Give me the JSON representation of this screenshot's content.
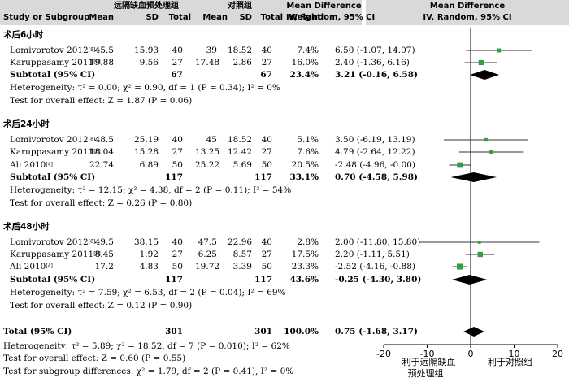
{
  "header": {
    "study": "Study or Subgroup",
    "group1": "远隔缺血预处理组",
    "group2": "对照组",
    "mean": "Mean",
    "sd": "SD",
    "total": "Total",
    "weight": "Weight",
    "md": "Mean Difference",
    "method": "IV, Random, 95% CI"
  },
  "subgroups": [
    {
      "title": "术后6小时",
      "studies": [
        {
          "name": "Lomivorotov 2012",
          "ref": "[8]",
          "m1": "45.5",
          "sd1": "15.93",
          "n1": "40",
          "m2": "39",
          "sd2": "18.52",
          "n2": "40",
          "weight": "7.4%",
          "ci": "6.50 (-1.07, 14.07)"
        },
        {
          "name": "Karuppasamy 2011",
          "ref": "[6]",
          "m1": "19.88",
          "sd1": "9.56",
          "n1": "27",
          "m2": "17.48",
          "sd2": "2.86",
          "n2": "27",
          "weight": "16.0%",
          "ci": "2.40 (-1.36, 6.16)"
        }
      ],
      "subtotal": {
        "label": "Subtotal (95% CI)",
        "n1": "67",
        "n2": "67",
        "weight": "23.4%",
        "ci": "3.21 (-0.16, 6.58)"
      },
      "heterogeneity": "Heterogeneity: τ² = 0.00; χ² = 0.90, df = 1 (P = 0.34); I² = 0%",
      "overall": "Test for overall effect: Z = 1.87 (P = 0.06)"
    },
    {
      "title": "术后24小时",
      "studies": [
        {
          "name": "Lomivorotov 2012",
          "ref": "[8]",
          "m1": "48.5",
          "sd1": "25.19",
          "n1": "40",
          "m2": "45",
          "sd2": "18.52",
          "n2": "40",
          "weight": "5.1%",
          "ci": "3.50 (-6.19, 13.19)"
        },
        {
          "name": "Karuppasamy 2011",
          "ref": "[6]",
          "m1": "18.04",
          "sd1": "15.28",
          "n1": "27",
          "m2": "13.25",
          "sd2": "12.42",
          "n2": "27",
          "weight": "7.6%",
          "ci": "4.79 (-2.64, 12.22)"
        },
        {
          "name": "Ali 2010",
          "ref": "[4]",
          "m1": "22.74",
          "sd1": "6.89",
          "n1": "50",
          "m2": "25.22",
          "sd2": "5.69",
          "n2": "50",
          "weight": "20.5%",
          "ci": "-2.48 (-4.96, -0.00)"
        }
      ],
      "subtotal": {
        "label": "Subtotal (95% CI)",
        "n1": "117",
        "n2": "117",
        "weight": "33.1%",
        "ci": "0.70 (-4.58, 5.98)"
      },
      "heterogeneity": "Heterogeneity: τ² = 12.15; χ² = 4.38, df = 2 (P = 0.11); I² = 54%",
      "overall": "Test for overall effect: Z = 0.26 (P = 0.80)"
    },
    {
      "title": "术后48小时",
      "studies": [
        {
          "name": "Lomivorotov 2012",
          "ref": "[8]",
          "m1": "49.5",
          "sd1": "38.15",
          "n1": "40",
          "m2": "47.5",
          "sd2": "22.96",
          "n2": "40",
          "weight": "2.8%",
          "ci": "2.00 (-11.80, 15.80)"
        },
        {
          "name": "Karuppasamy 2011",
          "ref": "[6]",
          "m1": "8.45",
          "sd1": "1.92",
          "n1": "27",
          "m2": "6.25",
          "sd2": "8.57",
          "n2": "27",
          "weight": "17.5%",
          "ci": "2.20 (-1.11, 5.51)"
        },
        {
          "name": "Ali 2010",
          "ref": "[4]",
          "m1": "17.2",
          "sd1": "4.83",
          "n1": "50",
          "m2": "19.72",
          "sd2": "3.39",
          "n2": "50",
          "weight": "23.3%",
          "ci": "-2.52 (-4.16, -0.88)"
        }
      ],
      "subtotal": {
        "label": "Subtotal (95% CI)",
        "n1": "117",
        "n2": "117",
        "weight": "43.6%",
        "ci": "-0.25 (-4.30, 3.80)"
      },
      "heterogeneity": "Heterogeneity: τ² = 7.59; χ² = 6.53, df = 2 (P = 0.04); I² = 69%",
      "overall": "Test for overall effect: Z = 0.12 (P = 0.90)"
    }
  ],
  "total": {
    "label": "Total (95% CI)",
    "n1": "301",
    "n2": "301",
    "weight": "100.0%",
    "ci": "0.75 (-1.68, 3.17)",
    "heterogeneity": "Heterogeneity: τ² = 5.89; χ² = 18.52, df = 7 (P = 0.010); I² = 62%",
    "overall": "Test for overall effect: Z = 0.60 (P = 0.55)",
    "subgroup_diff": "Test for subgroup differences: χ² = 1.79, df = 2 (P = 0.41), I² = 0%"
  },
  "axis_labels": {
    "left_line1": "利于远隔缺血",
    "left_line2": "预处理组",
    "right": "利于对照组"
  },
  "colors": {
    "header_bg": "#d9d9d9",
    "marker": "#2ea043",
    "diamond": "#000000"
  },
  "chart_data": {
    "type": "scatter",
    "xlim": [
      -20,
      20
    ],
    "ticks": [
      -20,
      -10,
      0,
      10,
      20
    ],
    "tick_labels": [
      "-20",
      "-10",
      "0",
      "10",
      "20"
    ],
    "studies": [
      {
        "subgroup": "术后6小时",
        "name": "Lomivorotov 2012",
        "md": 6.5,
        "lo": -1.07,
        "hi": 14.07,
        "weight": 7.4
      },
      {
        "subgroup": "术后6小时",
        "name": "Karuppasamy 2011",
        "md": 2.4,
        "lo": -1.36,
        "hi": 6.16,
        "weight": 16.0
      },
      {
        "subgroup": "术后24小时",
        "name": "Lomivorotov 2012",
        "md": 3.5,
        "lo": -6.19,
        "hi": 13.19,
        "weight": 5.1
      },
      {
        "subgroup": "术后24小时",
        "name": "Karuppasamy 2011",
        "md": 4.79,
        "lo": -2.64,
        "hi": 12.22,
        "weight": 7.6
      },
      {
        "subgroup": "术后24小时",
        "name": "Ali 2010",
        "md": -2.48,
        "lo": -4.96,
        "hi": -0.0,
        "weight": 20.5
      },
      {
        "subgroup": "术后48小时",
        "name": "Lomivorotov 2012",
        "md": 2.0,
        "lo": -11.8,
        "hi": 15.8,
        "weight": 2.8
      },
      {
        "subgroup": "术后48小时",
        "name": "Karuppasamy 2011",
        "md": 2.2,
        "lo": -1.11,
        "hi": 5.51,
        "weight": 17.5
      },
      {
        "subgroup": "术后48小时",
        "name": "Ali 2010",
        "md": -2.52,
        "lo": -4.16,
        "hi": -0.88,
        "weight": 23.3
      }
    ],
    "diamonds": [
      {
        "name": "术后6小时 Subtotal",
        "md": 3.21,
        "lo": -0.16,
        "hi": 6.58
      },
      {
        "name": "术后24小时 Subtotal",
        "md": 0.7,
        "lo": -4.58,
        "hi": 5.98
      },
      {
        "name": "术后48小时 Subtotal",
        "md": -0.25,
        "lo": -4.3,
        "hi": 3.8
      },
      {
        "name": "Total",
        "md": 0.75,
        "lo": -1.68,
        "hi": 3.17
      }
    ]
  }
}
